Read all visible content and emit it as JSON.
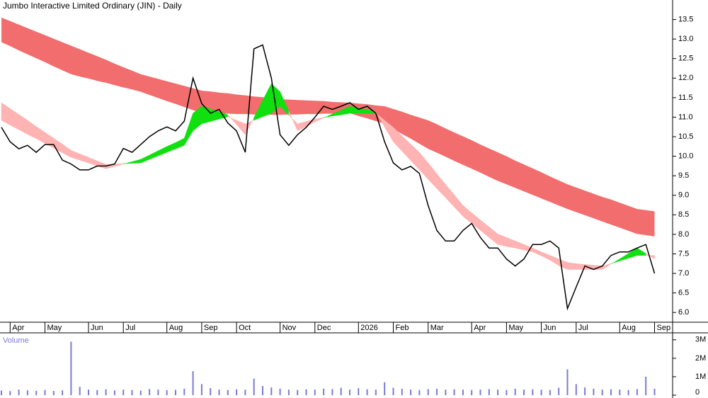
{
  "chart_data": {
    "type": "stock",
    "title": "Jumbo Interactive Limited Ordinary (JIN) - Daily",
    "categories": [
      null,
      "Apr",
      null,
      null,
      null,
      "May",
      null,
      null,
      null,
      null,
      "Jun",
      null,
      null,
      null,
      "Jul",
      null,
      null,
      null,
      null,
      "Aug",
      null,
      null,
      null,
      "Sep",
      null,
      null,
      null,
      "Oct",
      null,
      null,
      null,
      null,
      "Nov",
      null,
      null,
      null,
      "Dec",
      null,
      null,
      null,
      null,
      "2026",
      null,
      null,
      null,
      "Feb",
      null,
      null,
      null,
      "Mar",
      null,
      null,
      null,
      null,
      "Apr",
      null,
      null,
      null,
      "May",
      null,
      null,
      null,
      "Jun",
      null,
      null,
      null,
      "Jul",
      null,
      null,
      null,
      null,
      "Aug",
      null,
      null,
      null,
      "Sep"
    ],
    "ylim": [
      5.75,
      14.0
    ],
    "yticks": [
      {
        "value": 6.0,
        "label": "6.0"
      },
      {
        "value": 6.5,
        "label": "6.5"
      },
      {
        "value": 7.0,
        "label": "7.0"
      },
      {
        "value": 7.5,
        "label": "7.5"
      },
      {
        "value": 8.0,
        "label": "8.0"
      },
      {
        "value": 8.5,
        "label": "8.5"
      },
      {
        "value": 9.0,
        "label": "9.0"
      },
      {
        "value": 9.5,
        "label": "9.5"
      },
      {
        "value": 10.0,
        "label": "10.0"
      },
      {
        "value": 10.5,
        "label": "10.5"
      },
      {
        "value": 11.0,
        "label": "11.0"
      },
      {
        "value": 11.5,
        "label": "11.5"
      },
      {
        "value": 12.0,
        "label": "12.0"
      },
      {
        "value": 12.5,
        "label": "12.5"
      },
      {
        "value": 13.0,
        "label": "13.0"
      },
      {
        "value": 13.5,
        "label": "13.5"
      }
    ],
    "price": {
      "color": "#000000",
      "values": [
        10.74,
        10.37,
        10.19,
        10.28,
        10.1,
        10.3,
        10.3,
        9.9,
        9.8,
        9.65,
        9.65,
        9.75,
        9.75,
        9.8,
        10.2,
        10.1,
        10.3,
        10.5,
        10.65,
        10.75,
        10.65,
        10.9,
        12.0,
        11.35,
        11.1,
        11.2,
        10.85,
        10.65,
        10.1,
        12.75,
        12.85,
        12.0,
        10.55,
        10.28,
        10.55,
        10.74,
        11.0,
        11.28,
        11.2,
        11.28,
        11.37,
        11.2,
        11.28,
        11.1,
        10.37,
        9.83,
        9.65,
        9.74,
        9.56,
        8.74,
        8.1,
        7.83,
        7.83,
        8.1,
        8.28,
        7.92,
        7.65,
        7.65,
        7.37,
        7.19,
        7.37,
        7.74,
        7.74,
        7.83,
        7.65,
        6.1,
        6.65,
        7.19,
        7.1,
        7.19,
        7.46,
        7.55,
        7.55,
        7.65,
        7.74,
        7.0
      ]
    },
    "long_band": {
      "color": "#f26d6d",
      "upper": [
        13.55,
        13.46,
        13.37,
        13.28,
        13.19,
        13.1,
        13.01,
        12.92,
        12.83,
        12.74,
        12.65,
        12.56,
        12.47,
        12.37,
        12.28,
        12.19,
        12.1,
        12.04,
        11.98,
        11.92,
        11.86,
        11.8,
        11.74,
        11.68,
        11.66,
        11.63,
        11.61,
        11.58,
        11.56,
        11.53,
        11.51,
        11.48,
        11.46,
        11.45,
        11.44,
        11.43,
        11.42,
        11.41,
        11.39,
        11.38,
        11.37,
        11.35,
        11.33,
        11.3,
        11.28,
        11.21,
        11.14,
        11.06,
        10.99,
        10.92,
        10.82,
        10.71,
        10.61,
        10.51,
        10.41,
        10.3,
        10.2,
        10.1,
        10.0,
        9.89,
        9.79,
        9.69,
        9.59,
        9.48,
        9.38,
        9.28,
        9.2,
        9.12,
        9.04,
        8.96,
        8.89,
        8.81,
        8.73,
        8.65,
        8.62,
        8.59
      ],
      "lower": [
        12.92,
        12.82,
        12.71,
        12.61,
        12.51,
        12.41,
        12.3,
        12.2,
        12.1,
        12.04,
        11.99,
        11.93,
        11.88,
        11.82,
        11.76,
        11.71,
        11.65,
        11.57,
        11.49,
        11.41,
        11.34,
        11.26,
        11.18,
        11.1,
        11.1,
        11.09,
        11.09,
        11.08,
        11.08,
        11.07,
        11.07,
        11.06,
        11.06,
        11.07,
        11.07,
        11.08,
        11.08,
        11.09,
        11.09,
        11.1,
        11.1,
        11.03,
        10.97,
        10.9,
        10.83,
        10.7,
        10.57,
        10.45,
        10.32,
        10.19,
        10.09,
        9.99,
        9.88,
        9.78,
        9.68,
        9.58,
        9.47,
        9.37,
        9.28,
        9.19,
        9.1,
        9.01,
        8.92,
        8.83,
        8.74,
        8.65,
        8.57,
        8.49,
        8.41,
        8.33,
        8.25,
        8.17,
        8.09,
        8.01,
        7.98,
        7.95
      ]
    },
    "short_band": {
      "up_color": "#10e010",
      "down_color": "#ffb3b3",
      "fast": [
        10.92,
        10.8,
        10.68,
        10.56,
        10.45,
        10.33,
        10.21,
        10.09,
        9.97,
        9.9,
        9.83,
        9.75,
        9.68,
        9.74,
        9.8,
        9.86,
        9.92,
        10.03,
        10.14,
        10.25,
        10.35,
        10.46,
        11.1,
        11.28,
        11.21,
        11.14,
        11.06,
        10.81,
        10.55,
        10.99,
        11.43,
        11.86,
        11.65,
        11.15,
        10.65,
        10.76,
        10.88,
        10.98,
        11.08,
        11.18,
        11.28,
        11.23,
        11.19,
        11.14,
        10.75,
        10.37,
        10.13,
        9.89,
        9.65,
        9.41,
        9.17,
        8.94,
        8.7,
        8.46,
        8.28,
        8.1,
        7.92,
        7.74,
        7.69,
        7.65,
        7.6,
        7.55,
        7.45,
        7.34,
        7.2,
        7.1,
        7.1,
        7.1,
        7.1,
        7.1,
        7.24,
        7.37,
        7.51,
        7.65,
        7.51,
        7.37
      ],
      "slow": [
        11.37,
        11.22,
        11.07,
        10.92,
        10.76,
        10.61,
        10.46,
        10.31,
        10.15,
        10.06,
        9.97,
        9.88,
        9.79,
        9.8,
        9.81,
        9.82,
        9.83,
        9.92,
        10.01,
        10.1,
        10.19,
        10.28,
        10.65,
        10.83,
        10.89,
        10.95,
        11.01,
        10.92,
        10.83,
        10.92,
        11.01,
        11.1,
        11.28,
        11.05,
        10.83,
        10.89,
        10.95,
        10.99,
        11.03,
        11.06,
        11.1,
        11.1,
        11.1,
        11.1,
        10.92,
        10.74,
        10.52,
        10.31,
        10.1,
        9.83,
        9.55,
        9.28,
        9.01,
        8.74,
        8.55,
        8.37,
        8.19,
        8.01,
        7.92,
        7.83,
        7.74,
        7.65,
        7.55,
        7.46,
        7.37,
        7.28,
        7.25,
        7.23,
        7.21,
        7.19,
        7.25,
        7.32,
        7.39,
        7.46,
        7.46,
        7.46
      ]
    },
    "volume": {
      "label": "Volume",
      "color": "#7b7bd6",
      "ylim": [
        0,
        3300000
      ],
      "yticks": [
        0,
        {
          "value": 1000000,
          "label": "1M"
        },
        {
          "value": 2000000,
          "label": "2M"
        },
        {
          "value": 3000000,
          "label": "3M"
        }
      ],
      "values": [
        250000,
        220000,
        300000,
        260000,
        240000,
        280000,
        230000,
        260000,
        2900000,
        450000,
        300000,
        280000,
        320000,
        260000,
        300000,
        280000,
        250000,
        330000,
        300000,
        270000,
        290000,
        350000,
        1300000,
        600000,
        380000,
        300000,
        280000,
        320000,
        300000,
        900000,
        500000,
        420000,
        350000,
        300000,
        280000,
        320000,
        300000,
        350000,
        330000,
        400000,
        300000,
        380000,
        320000,
        300000,
        700000,
        400000,
        350000,
        300000,
        280000,
        330000,
        350000,
        300000,
        320000,
        300000,
        280000,
        300000,
        330000,
        300000,
        280000,
        350000,
        300000,
        320000,
        300000,
        280000,
        400000,
        1400000,
        600000,
        420000,
        350000,
        300000,
        320000,
        300000,
        280000,
        330000,
        1000000,
        350000
      ]
    }
  }
}
